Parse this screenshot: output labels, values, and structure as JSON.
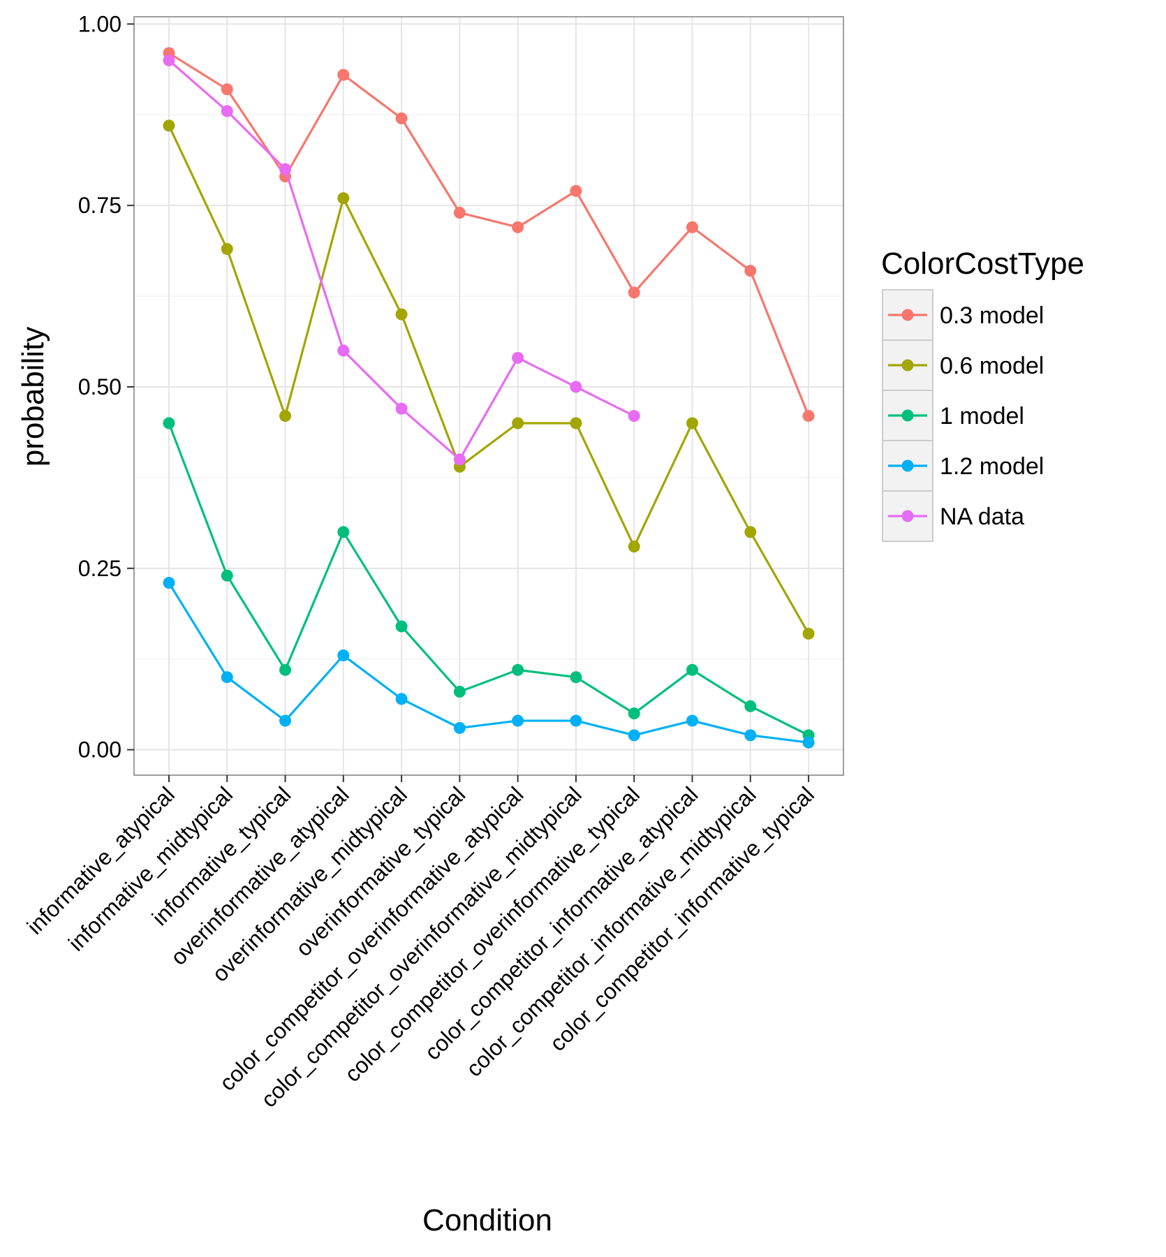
{
  "chart_data": {
    "type": "line",
    "title": "",
    "xlabel": "Condition",
    "ylabel": "probability",
    "categories": [
      "informative_atypical",
      "informative_midtypical",
      "informative_typical",
      "overinformative_atypical",
      "overinformative_midtypical",
      "overinformative_typical",
      "color_competitor_overinformative_atypical",
      "color_competitor_overinformative_midtypical",
      "color_competitor_overinformative_typical",
      "color_competitor_informative_atypical",
      "color_competitor_informative_midtypical",
      "color_competitor_informative_typical"
    ],
    "ylim": [
      -0.035,
      1.01
    ],
    "yticks": [
      0.0,
      0.25,
      0.5,
      0.75,
      1.0
    ],
    "ytick_labels": [
      "0.00",
      "0.25",
      "0.50",
      "0.75",
      "1.00"
    ],
    "grid": true,
    "legend": {
      "title": "ColorCostType",
      "placement": "right"
    },
    "series": [
      {
        "name": "0.3 model",
        "color": "#F8766D",
        "values": [
          0.96,
          0.91,
          0.79,
          0.93,
          0.87,
          0.74,
          0.72,
          0.77,
          0.63,
          0.72,
          0.66,
          0.46
        ]
      },
      {
        "name": "0.6 model",
        "color": "#A3A500",
        "values": [
          0.86,
          0.69,
          0.46,
          0.76,
          0.6,
          0.39,
          0.45,
          0.45,
          0.28,
          0.45,
          0.3,
          0.16
        ]
      },
      {
        "name": "1 model",
        "color": "#00BF7D",
        "values": [
          0.45,
          0.24,
          0.11,
          0.3,
          0.17,
          0.08,
          0.11,
          0.1,
          0.05,
          0.11,
          0.06,
          0.02
        ]
      },
      {
        "name": "1.2 model",
        "color": "#00B0F6",
        "values": [
          0.23,
          0.1,
          0.04,
          0.13,
          0.07,
          0.03,
          0.04,
          0.04,
          0.02,
          0.04,
          0.02,
          0.01
        ]
      },
      {
        "name": "NA data",
        "color": "#E76BF3",
        "values": [
          0.95,
          0.88,
          0.8,
          0.55,
          0.47,
          0.4,
          0.54,
          0.5,
          0.46,
          null,
          null,
          null
        ]
      }
    ]
  }
}
